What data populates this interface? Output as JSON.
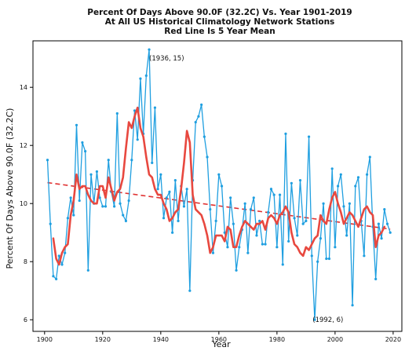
{
  "chart_data": {
    "type": "line",
    "title": [
      "Percent Of Days Above 90.0F (32.2C) Vs. Year 1901-2019",
      "At All US Historical Climatology Network Stations",
      "Red Line Is 5 Year Mean"
    ],
    "xlabel": "Year",
    "ylabel": "Percent Of Days Above 90.0F (32.2C)",
    "xlim": [
      1896,
      2023
    ],
    "ylim": [
      5.6,
      15.6
    ],
    "xticks": [
      1900,
      1920,
      1940,
      1960,
      1980,
      2000,
      2020
    ],
    "yticks": [
      6,
      8,
      10,
      12,
      14
    ],
    "grid": false,
    "legend": "none",
    "colors": {
      "annual": "#1f9fe0",
      "mean": "#e8483f",
      "trend": "#e03030",
      "axes": "#000000"
    },
    "annotations": [
      {
        "text": "(1936, 15)",
        "x": 1936,
        "y": 15
      },
      {
        "text": "(1992, 6)",
        "x": 1992,
        "y": 6
      }
    ],
    "series": [
      {
        "role": "annual",
        "x": [
          1901,
          1902,
          1903,
          1904,
          1905,
          1906,
          1907,
          1908,
          1909,
          1910,
          1911,
          1912,
          1913,
          1914,
          1915,
          1916,
          1917,
          1918,
          1919,
          1920,
          1921,
          1922,
          1923,
          1924,
          1925,
          1926,
          1927,
          1928,
          1929,
          1930,
          1931,
          1932,
          1933,
          1934,
          1935,
          1936,
          1937,
          1938,
          1939,
          1940,
          1941,
          1942,
          1943,
          1944,
          1945,
          1946,
          1947,
          1948,
          1949,
          1950,
          1951,
          1952,
          1953,
          1954,
          1955,
          1956,
          1957,
          1958,
          1959,
          1960,
          1961,
          1962,
          1963,
          1964,
          1965,
          1966,
          1967,
          1968,
          1969,
          1970,
          1971,
          1972,
          1973,
          1974,
          1975,
          1976,
          1977,
          1978,
          1979,
          1980,
          1981,
          1982,
          1983,
          1984,
          1985,
          1986,
          1987,
          1988,
          1989,
          1990,
          1991,
          1992,
          1993,
          1994,
          1995,
          1996,
          1997,
          1998,
          1999,
          2000,
          2001,
          2002,
          2003,
          2004,
          2005,
          2006,
          2007,
          2008,
          2009,
          2010,
          2011,
          2012,
          2013,
          2014,
          2015,
          2016,
          2017,
          2018,
          2019
        ],
        "values": [
          11.5,
          9.3,
          7.5,
          7.4,
          8.2,
          7.9,
          8.3,
          9.5,
          10.2,
          9.6,
          12.7,
          10.1,
          12.1,
          11.8,
          7.7,
          11.0,
          10.0,
          11.1,
          10.2,
          9.9,
          9.9,
          11.5,
          10.4,
          9.9,
          13.1,
          10.0,
          9.6,
          9.4,
          10.1,
          11.5,
          13.2,
          12.2,
          14.3,
          12.4,
          14.4,
          15.3,
          11.4,
          13.3,
          10.5,
          11.0,
          9.5,
          10.2,
          10.4,
          9.0,
          10.8,
          9.4,
          10.6,
          9.9,
          10.5,
          7.0,
          10.8,
          12.8,
          13.0,
          13.4,
          12.3,
          11.6,
          9.8,
          8.3,
          9.4,
          11.0,
          10.6,
          9.0,
          8.5,
          10.2,
          9.3,
          7.7,
          8.5,
          9.1,
          10.0,
          8.3,
          9.8,
          10.2,
          8.9,
          9.4,
          8.6,
          8.6,
          9.7,
          10.5,
          10.3,
          8.5,
          10.3,
          7.9,
          12.4,
          8.7,
          10.7,
          9.5,
          8.9,
          10.8,
          9.3,
          9.4,
          12.3,
          8.2,
          6.0,
          8.0,
          8.8,
          10.0,
          8.1,
          8.1,
          11.2,
          8.5,
          10.6,
          11.0,
          9.9,
          8.9,
          10.0,
          6.5,
          10.6,
          10.9,
          9.4,
          8.2,
          11.0,
          11.6,
          9.2,
          7.4,
          9.3,
          8.8,
          9.8,
          9.3,
          9.0
        ]
      },
      {
        "role": "5-year mean",
        "x": [
          1903,
          1904,
          1905,
          1906,
          1907,
          1908,
          1909,
          1910,
          1911,
          1912,
          1913,
          1914,
          1915,
          1916,
          1917,
          1918,
          1919,
          1920,
          1921,
          1922,
          1923,
          1924,
          1925,
          1926,
          1927,
          1928,
          1929,
          1930,
          1931,
          1932,
          1933,
          1934,
          1935,
          1936,
          1937,
          1938,
          1939,
          1940,
          1941,
          1942,
          1943,
          1944,
          1945,
          1946,
          1947,
          1948,
          1949,
          1950,
          1951,
          1952,
          1953,
          1954,
          1955,
          1956,
          1957,
          1958,
          1959,
          1960,
          1961,
          1962,
          1963,
          1964,
          1965,
          1966,
          1967,
          1968,
          1969,
          1970,
          1971,
          1972,
          1973,
          1974,
          1975,
          1976,
          1977,
          1978,
          1979,
          1980,
          1981,
          1982,
          1983,
          1984,
          1985,
          1986,
          1987,
          1988,
          1989,
          1990,
          1991,
          1992,
          1993,
          1994,
          1995,
          1996,
          1997,
          1998,
          1999,
          2000,
          2001,
          2002,
          2003,
          2004,
          2005,
          2006,
          2007,
          2008,
          2009,
          2010,
          2011,
          2012,
          2013,
          2014,
          2015,
          2016,
          2017
        ],
        "values": [
          8.8,
          8.1,
          7.9,
          8.3,
          8.5,
          8.6,
          9.6,
          10.1,
          11.0,
          10.5,
          10.6,
          10.6,
          10.3,
          10.1,
          10.0,
          10.0,
          10.6,
          10.6,
          10.2,
          10.9,
          10.5,
          10.1,
          10.4,
          10.5,
          10.9,
          11.9,
          12.8,
          12.6,
          13.0,
          13.3,
          12.6,
          12.3,
          11.6,
          11.0,
          10.9,
          10.5,
          10.3,
          10.3,
          10.0,
          9.8,
          9.4,
          9.5,
          9.7,
          9.8,
          10.5,
          11.4,
          12.5,
          12.1,
          10.3,
          9.8,
          9.7,
          9.6,
          9.3,
          8.9,
          8.3,
          8.5,
          8.9,
          8.9,
          8.9,
          8.7,
          9.2,
          9.1,
          8.5,
          8.5,
          8.9,
          9.2,
          9.4,
          9.3,
          9.2,
          9.1,
          9.3,
          9.3,
          9.4,
          9.1,
          9.5,
          9.6,
          9.5,
          9.3,
          9.6,
          9.7,
          9.9,
          9.7,
          9.0,
          8.6,
          8.5,
          8.3,
          8.2,
          8.5,
          8.4,
          8.6,
          8.8,
          8.9,
          9.6,
          9.4,
          9.3,
          9.8,
          10.2,
          10.4,
          10.0,
          9.7,
          9.3,
          9.5,
          9.7,
          9.6,
          9.4,
          9.2,
          9.5,
          9.8,
          9.9,
          9.7,
          9.6,
          8.5,
          8.9,
          9.0,
          9.2
        ]
      },
      {
        "role": "linear trend",
        "x": [
          1901,
          2019
        ],
        "values": [
          10.72,
          9.12
        ]
      }
    ]
  }
}
